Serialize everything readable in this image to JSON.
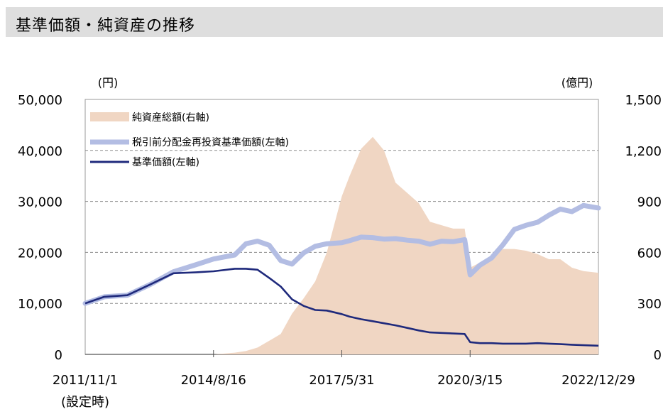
{
  "header": {
    "title": "基準価額・純資産の推移"
  },
  "chart_data": {
    "type": "line",
    "left_axis": {
      "unit": "(円)",
      "ylim": [
        0,
        50000
      ],
      "ticks": [
        "50,000",
        "40,000",
        "30,000",
        "20,000",
        "10,000",
        "0"
      ]
    },
    "right_axis": {
      "unit": "(億円)",
      "ylim": [
        0,
        1500
      ],
      "ticks": [
        "1,500",
        "1,200",
        "900",
        "600",
        "300",
        "0"
      ]
    },
    "x_ticks": [
      "2011/11/1",
      "2014/8/16",
      "2017/5/31",
      "2020/3/15",
      "2022/12/29"
    ],
    "x_tick_note": "(設定時)",
    "grid": "horizontal-dashed",
    "legend_position": "top-left",
    "legend": [
      "純資産総額(右軸)",
      "税引前分配金再投資基準価額(左軸)",
      "基準価額(左軸)"
    ],
    "colors": {
      "assets": "#f0d6c3",
      "reinvested": "#b3bde3",
      "nav": "#1f2a7c"
    },
    "x_dates": [
      "2011/11/1",
      "2012/4/1",
      "2012/10/1",
      "2013/4/1",
      "2013/10/1",
      "2014/4/1",
      "2014/8/16",
      "2015/2/1",
      "2015/5/1",
      "2015/8/1",
      "2015/11/1",
      "2016/2/1",
      "2016/5/1",
      "2016/8/1",
      "2016/11/1",
      "2017/2/1",
      "2017/5/31",
      "2017/8/1",
      "2017/11/1",
      "2018/2/1",
      "2018/5/1",
      "2018/8/1",
      "2018/11/1",
      "2019/2/1",
      "2019/5/1",
      "2019/8/1",
      "2019/11/1",
      "2020/2/1",
      "2020/3/15",
      "2020/6/1",
      "2020/9/1",
      "2020/12/1",
      "2021/3/1",
      "2021/6/1",
      "2021/9/1",
      "2021/12/1",
      "2022/3/1",
      "2022/6/1",
      "2022/9/1",
      "2022/12/29"
    ],
    "series": [
      {
        "name": "純資産総額(右軸)",
        "axis": "right",
        "values": [
          0,
          0,
          0,
          0,
          0,
          0,
          0,
          10,
          20,
          40,
          80,
          120,
          240,
          330,
          430,
          600,
          930,
          1050,
          1210,
          1280,
          1200,
          1010,
          950,
          890,
          780,
          760,
          740,
          740,
          510,
          540,
          570,
          620,
          620,
          610,
          590,
          560,
          560,
          510,
          490,
          480
        ]
      },
      {
        "name": "税引前分配金再投資基準価額(左軸)",
        "axis": "left",
        "values": [
          10000,
          11300,
          11600,
          13700,
          16200,
          17600,
          18700,
          19500,
          21700,
          22200,
          21400,
          18400,
          17700,
          19900,
          21200,
          21700,
          21900,
          22300,
          23000,
          22900,
          22600,
          22700,
          22400,
          22200,
          21600,
          22200,
          22100,
          22500,
          15600,
          17500,
          18900,
          21500,
          24500,
          25300,
          25900,
          27300,
          28500,
          28000,
          29200,
          28700
        ]
      },
      {
        "name": "基準価額(左軸)",
        "axis": "left",
        "values": [
          10000,
          11300,
          11600,
          13700,
          15900,
          16100,
          16300,
          16800,
          16800,
          16600,
          15000,
          13300,
          10800,
          9500,
          8700,
          8600,
          7900,
          7400,
          6900,
          6500,
          6100,
          5700,
          5200,
          4700,
          4300,
          4200,
          4100,
          4000,
          2400,
          2200,
          2200,
          2100,
          2100,
          2100,
          2200,
          2100,
          2000,
          1900,
          1800,
          1700
        ]
      }
    ]
  }
}
